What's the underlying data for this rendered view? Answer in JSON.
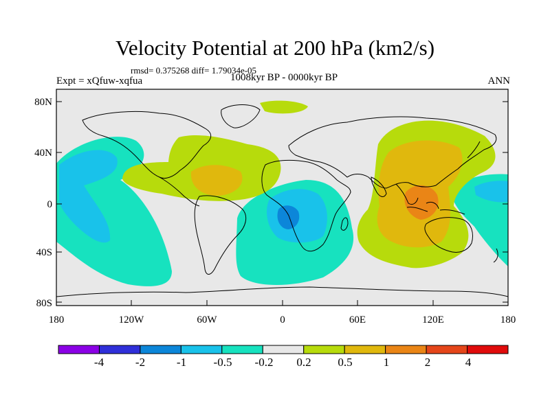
{
  "header": {
    "title": "Velocity Potential at 200 hPa (km2/s)",
    "stats": "rmsd= 0.375268 diff= 1.79034e-05",
    "subtitle": "1008kyr BP - 0000kyr BP",
    "experiment": "Expt = xQfuw-xqfua",
    "season": "ANN"
  },
  "axes": {
    "lat_labels": [
      "80N",
      "40N",
      "0",
      "40S",
      "80S"
    ],
    "lon_labels": [
      "180",
      "120W",
      "60W",
      "0",
      "60E",
      "120E",
      "180"
    ]
  },
  "colorbar": {
    "labels": [
      "-4",
      "-2",
      "-1",
      "-0.5",
      "-0.2",
      "0.2",
      "0.5",
      "1",
      "2",
      "4"
    ],
    "colors": [
      "#8b00e6",
      "#2f2fd9",
      "#0c86d9",
      "#19c2ea",
      "#17e2bf",
      "#e8e8e8",
      "#b7db0c",
      "#e0b80d",
      "#ea8516",
      "#e5461a",
      "#e00b0b"
    ]
  },
  "palette": {
    "neg_0_5": "#17e2bf",
    "neg_1": "#19c2ea",
    "neg_2": "#0c86d9",
    "pos_0_5": "#b7db0c",
    "pos_1": "#e0b80d",
    "pos_2": "#ea8516",
    "neutral": "#e8e8e8"
  }
}
